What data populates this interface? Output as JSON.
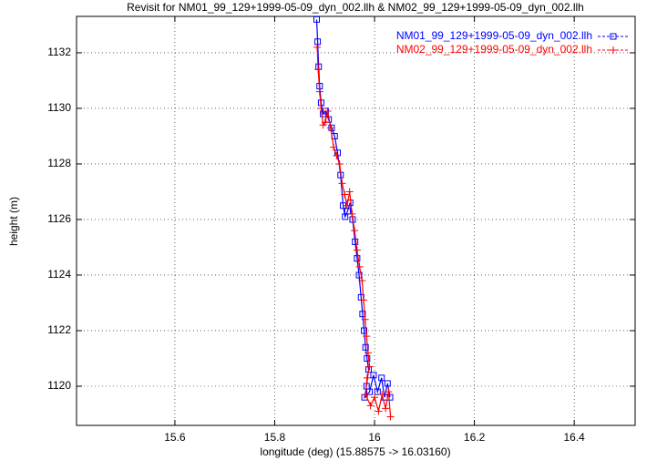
{
  "chart_data": {
    "type": "line",
    "title": "Revisit for NM01_99_129+1999-05-09_dyn_002.llh & NM02_99_129+1999-05-09_dyn_002.llh",
    "x_label": "longitude (deg) (15.88575 -> 16.03160)",
    "y_label": "height (m)",
    "xlim": [
      15.403,
      16.522
    ],
    "ylim": [
      1118.59,
      1133.31
    ],
    "xticks": [
      15.6,
      15.8,
      16,
      16.2,
      16.4
    ],
    "yticks": [
      1120,
      1122,
      1124,
      1126,
      1128,
      1130,
      1132
    ],
    "grid": true,
    "legend": "top-right",
    "series": [
      {
        "name": "NM01_99_129+1999-05-09_dyn_002.llh",
        "color": "#0000ff",
        "marker": "square",
        "x": [
          15.884,
          15.886,
          15.888,
          15.89,
          15.893,
          15.897,
          15.902,
          15.908,
          15.914,
          15.92,
          15.926,
          15.932,
          15.937,
          15.941,
          15.946,
          15.951,
          15.956,
          15.961,
          15.965,
          15.969,
          15.973,
          15.976,
          15.979,
          15.982,
          15.985,
          15.988,
          15.984,
          15.98,
          15.99,
          15.998,
          16.006,
          16.014,
          16.02,
          16.026,
          16.031
        ],
        "values": [
          1133.2,
          1132.4,
          1131.5,
          1130.8,
          1130.2,
          1129.8,
          1129.9,
          1129.6,
          1129.3,
          1129.0,
          1128.4,
          1127.6,
          1126.5,
          1126.1,
          1126.3,
          1126.6,
          1126.0,
          1125.2,
          1124.6,
          1124.0,
          1123.2,
          1122.6,
          1122.0,
          1121.4,
          1121.0,
          1120.6,
          1120.0,
          1119.6,
          1119.8,
          1120.4,
          1119.8,
          1120.3,
          1119.6,
          1120.1,
          1119.6
        ]
      },
      {
        "name": "NM02_99_129+1999-05-09_dyn_002.llh",
        "color": "#ff0000",
        "marker": "plus",
        "x": [
          15.885,
          15.887,
          15.89,
          15.893,
          15.897,
          15.901,
          15.906,
          15.912,
          15.918,
          15.924,
          15.93,
          15.935,
          15.94,
          15.945,
          15.95,
          15.955,
          15.96,
          15.965,
          15.97,
          15.975,
          15.978,
          15.981,
          15.984,
          15.987,
          15.99,
          15.985,
          15.982,
          15.992,
          16.0,
          16.008,
          16.015,
          16.022,
          16.028,
          16.032
        ],
        "values": [
          1132.2,
          1131.4,
          1130.6,
          1130.0,
          1129.4,
          1129.5,
          1129.9,
          1129.3,
          1128.6,
          1128.3,
          1128.0,
          1127.3,
          1126.9,
          1126.5,
          1127.0,
          1126.2,
          1125.6,
          1124.9,
          1124.3,
          1123.8,
          1123.1,
          1122.4,
          1121.8,
          1121.2,
          1120.7,
          1120.3,
          1119.7,
          1119.3,
          1119.6,
          1119.1,
          1119.7,
          1119.2,
          1119.8,
          1118.9
        ]
      }
    ]
  }
}
